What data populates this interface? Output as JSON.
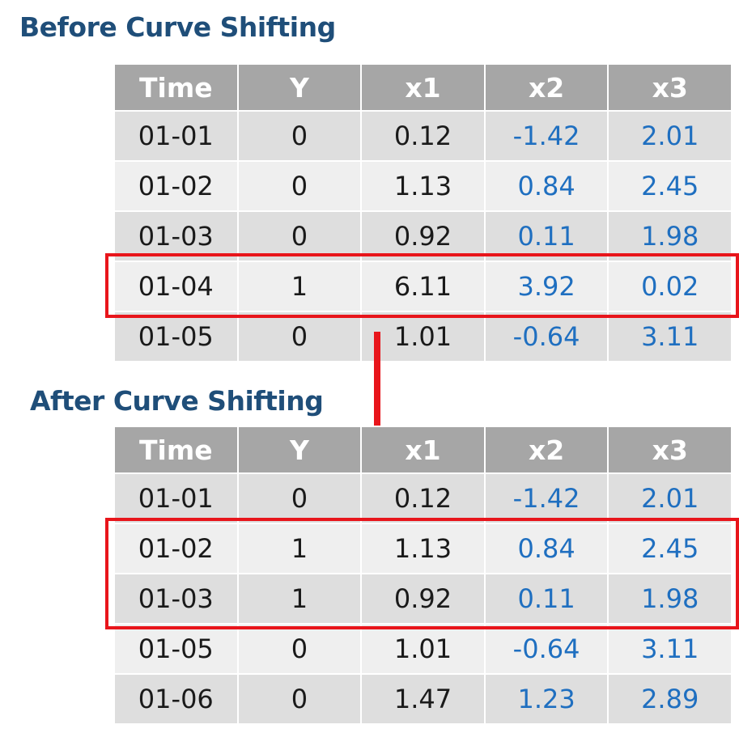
{
  "before": {
    "title": "Before Curve Shifting",
    "headers": [
      "Time",
      "Y",
      "x1",
      "x2",
      "x3"
    ],
    "rows": [
      [
        "01-01",
        "0",
        "0.12",
        "-1.42",
        "2.01"
      ],
      [
        "01-02",
        "0",
        "1.13",
        "0.84",
        "2.45"
      ],
      [
        "01-03",
        "0",
        "0.92",
        "0.11",
        "1.98"
      ],
      [
        "01-04",
        "1",
        "6.11",
        "3.92",
        "0.02"
      ],
      [
        "01-05",
        "0",
        "1.01",
        "-0.64",
        "3.11"
      ]
    ],
    "highlighted_times": [
      "01-04"
    ]
  },
  "after": {
    "title": "After Curve Shifting",
    "headers": [
      "Time",
      "Y",
      "x1",
      "x2",
      "x3"
    ],
    "rows": [
      [
        "01-01",
        "0",
        "0.12",
        "-1.42",
        "2.01"
      ],
      [
        "01-02",
        "1",
        "1.13",
        "0.84",
        "2.45"
      ],
      [
        "01-03",
        "1",
        "0.92",
        "0.11",
        "1.98"
      ],
      [
        "01-05",
        "0",
        "1.01",
        "-0.64",
        "3.11"
      ],
      [
        "01-06",
        "0",
        "1.47",
        "1.23",
        "2.89"
      ]
    ],
    "highlighted_times": [
      "01-02",
      "01-03"
    ]
  },
  "colors": {
    "title": "#1f4e79",
    "header_bg": "#a6a6a6",
    "row_dark": "#dedede",
    "row_light": "#efefef",
    "blue_text": "#1f6fc0",
    "highlight": "#e8151b"
  },
  "icons": {
    "transition": "down-arrow-icon"
  }
}
